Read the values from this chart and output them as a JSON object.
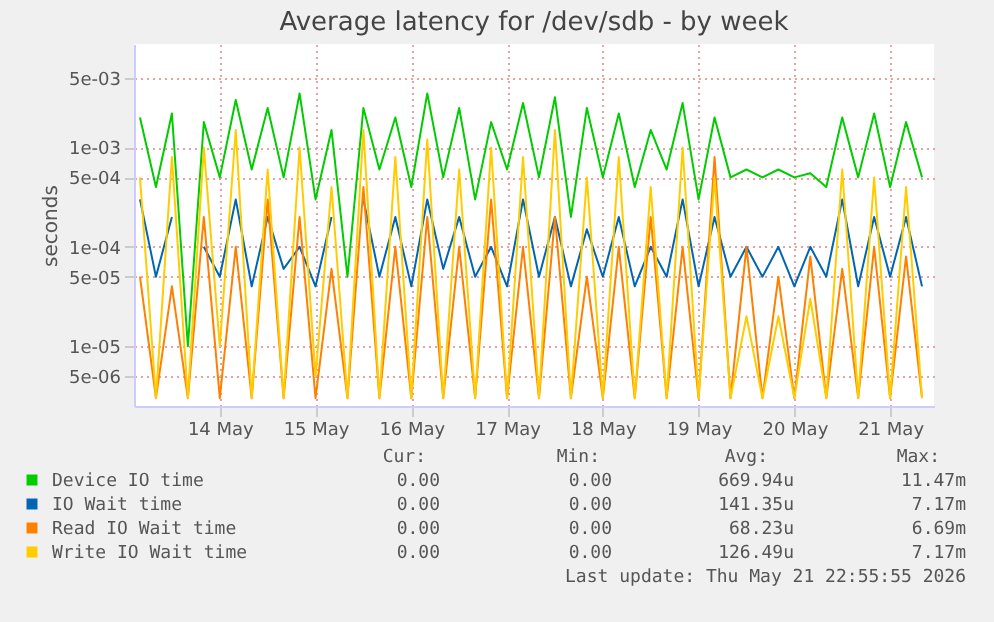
{
  "chart_data": {
    "type": "line",
    "title": "Average latency for /dev/sdb - by week",
    "ylabel": "seconds",
    "log": true,
    "grid": true,
    "legend": "bottom",
    "marker": "none",
    "line_style": "solid",
    "x": [
      "2026-05-13T04:00",
      "2026-05-13T08:00",
      "2026-05-13T12:00",
      "2026-05-13T16:00",
      "2026-05-13T20:00",
      "2026-05-14T00:00",
      "2026-05-14T04:00",
      "2026-05-14T08:00",
      "2026-05-14T12:00",
      "2026-05-14T16:00",
      "2026-05-14T20:00",
      "2026-05-15T00:00",
      "2026-05-15T04:00",
      "2026-05-15T08:00",
      "2026-05-15T12:00",
      "2026-05-15T16:00",
      "2026-05-15T20:00",
      "2026-05-16T00:00",
      "2026-05-16T04:00",
      "2026-05-16T08:00",
      "2026-05-16T12:00",
      "2026-05-16T16:00",
      "2026-05-16T20:00",
      "2026-05-17T00:00",
      "2026-05-17T04:00",
      "2026-05-17T08:00",
      "2026-05-17T12:00",
      "2026-05-17T16:00",
      "2026-05-17T20:00",
      "2026-05-18T00:00",
      "2026-05-18T04:00",
      "2026-05-18T08:00",
      "2026-05-18T12:00",
      "2026-05-18T16:00",
      "2026-05-18T20:00",
      "2026-05-19T00:00",
      "2026-05-19T04:00",
      "2026-05-19T08:00",
      "2026-05-19T12:00",
      "2026-05-19T16:00",
      "2026-05-19T20:00",
      "2026-05-20T00:00",
      "2026-05-20T04:00",
      "2026-05-20T08:00",
      "2026-05-20T12:00",
      "2026-05-20T16:00",
      "2026-05-20T20:00",
      "2026-05-21T00:00",
      "2026-05-21T04:00",
      "2026-05-21T08:00"
    ],
    "xlim": [
      "2026-05-13T02:30",
      "2026-05-21T11:00"
    ],
    "xticks": [
      {
        "value": "2026-05-14",
        "label": "14 May"
      },
      {
        "value": "2026-05-15",
        "label": "15 May"
      },
      {
        "value": "2026-05-16",
        "label": "16 May"
      },
      {
        "value": "2026-05-17",
        "label": "17 May"
      },
      {
        "value": "2026-05-18",
        "label": "18 May"
      },
      {
        "value": "2026-05-19",
        "label": "19 May"
      },
      {
        "value": "2026-05-20",
        "label": "20 May"
      },
      {
        "value": "2026-05-21",
        "label": "21 May"
      }
    ],
    "ylim": [
      2.5e-06,
      0.011
    ],
    "yticks": [
      {
        "value": 0.005,
        "label": "5e-03"
      },
      {
        "value": 0.001,
        "label": "1e-03"
      },
      {
        "value": 0.0005,
        "label": "5e-04"
      },
      {
        "value": 0.0001,
        "label": "1e-04"
      },
      {
        "value": 5e-05,
        "label": "5e-05"
      },
      {
        "value": 1e-05,
        "label": "1e-05"
      },
      {
        "value": 5e-06,
        "label": "5e-06"
      }
    ],
    "series": [
      {
        "name": "Device IO time",
        "color": "#00cc00",
        "values": [
          0.002,
          0.0004,
          0.0022,
          1e-05,
          0.0018,
          0.0005,
          0.003,
          0.0006,
          0.0025,
          0.0005,
          0.0035,
          0.0003,
          0.0015,
          5e-05,
          0.0025,
          0.0006,
          0.002,
          0.0004,
          0.0035,
          0.0005,
          0.0025,
          0.0003,
          0.0018,
          0.0006,
          0.0028,
          0.0005,
          0.0032,
          0.0002,
          0.0025,
          0.0005,
          0.0022,
          0.0004,
          0.0015,
          0.0006,
          0.0028,
          0.0003,
          0.002,
          0.0005,
          0.0006,
          0.0005,
          0.0006,
          0.0005,
          0.00055,
          0.0004,
          0.002,
          0.0005,
          0.0022,
          0.0004,
          0.0018,
          0.0005
        ]
      },
      {
        "name": "IO Wait time",
        "color": "#0066b3",
        "values": [
          0.0003,
          5e-05,
          0.0002,
          null,
          0.0001,
          5e-05,
          0.0003,
          4e-05,
          0.0002,
          6e-05,
          0.0001,
          4e-05,
          0.0002,
          null,
          0.0003,
          5e-05,
          0.0002,
          4e-05,
          0.0003,
          6e-05,
          0.0002,
          5e-05,
          0.0001,
          4e-05,
          0.0003,
          5e-05,
          0.0002,
          4e-05,
          0.00015,
          5e-05,
          0.0002,
          4e-05,
          0.0001,
          5e-05,
          0.0003,
          4e-05,
          0.0002,
          5e-05,
          0.0001,
          5e-05,
          0.0001,
          4e-05,
          0.0001,
          5e-05,
          0.0003,
          4e-05,
          0.0002,
          5e-05,
          0.0002,
          4e-05
        ]
      },
      {
        "name": "Read IO Wait time",
        "color": "#ff8000",
        "values": [
          5e-05,
          3e-06,
          4e-05,
          3e-06,
          0.0002,
          3e-06,
          0.0001,
          3e-06,
          0.0003,
          3e-06,
          0.0002,
          3e-06,
          6e-05,
          3e-06,
          0.0004,
          3e-06,
          0.0001,
          3e-06,
          0.0002,
          3e-06,
          0.0001,
          3e-06,
          0.0003,
          3e-06,
          0.0001,
          3e-06,
          0.0002,
          3e-06,
          5e-05,
          3e-06,
          0.0001,
          3e-06,
          0.0002,
          3e-06,
          0.0001,
          3e-06,
          0.0008,
          3e-06,
          0.0001,
          3e-06,
          5e-05,
          3e-06,
          8e-05,
          3e-06,
          6e-05,
          3e-06,
          0.0001,
          3e-06,
          8e-05,
          3e-06
        ]
      },
      {
        "name": "Write IO Wait time",
        "color": "#ffcc00",
        "values": [
          0.0005,
          3e-06,
          0.0008,
          3e-06,
          0.001,
          1e-05,
          0.0015,
          3e-06,
          0.0006,
          3e-06,
          0.001,
          5e-06,
          0.0004,
          3e-06,
          0.0015,
          3e-06,
          0.0008,
          3e-06,
          0.0012,
          3e-06,
          0.0006,
          3e-06,
          0.001,
          3e-06,
          0.0008,
          3e-06,
          0.0015,
          3e-06,
          0.0005,
          3e-06,
          0.0008,
          3e-06,
          0.0004,
          3e-06,
          0.001,
          3e-06,
          0.0005,
          3e-06,
          2e-05,
          3e-06,
          2e-05,
          3e-06,
          3e-05,
          3e-06,
          0.0006,
          3e-06,
          0.0005,
          3e-06,
          0.0004,
          3e-06
        ]
      }
    ],
    "annotations": [
      "Cur:",
      "Min:",
      "Avg:",
      "Max:",
      "0.00",
      "0.00",
      "669.94u",
      "11.47m",
      "0.00",
      "0.00",
      "141.35u",
      "7.17m",
      "0.00",
      "0.00",
      "68.23u",
      "6.69m",
      "0.00",
      "0.00",
      "126.49u",
      "7.17m",
      "Last update: Thu May 21 22:55:55 2026"
    ]
  }
}
